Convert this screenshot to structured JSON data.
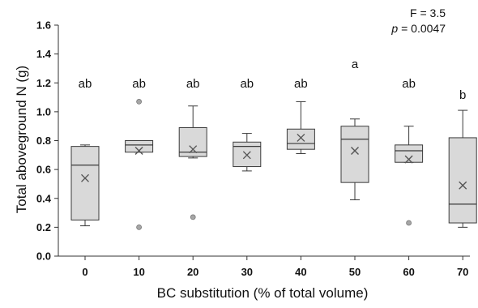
{
  "chart_data": {
    "type": "box",
    "xlabel": "BC substitution (% of total volume)",
    "ylabel": "Total aboveground N (g)",
    "ylim": [
      0.0,
      1.6
    ],
    "yticks": [
      "0.0",
      "0.2",
      "0.4",
      "0.6",
      "0.8",
      "1.0",
      "1.2",
      "1.4",
      "1.6"
    ],
    "grid": false,
    "categories": [
      "0",
      "10",
      "20",
      "30",
      "40",
      "50",
      "60",
      "70"
    ],
    "boxes": [
      {
        "category": "0",
        "whisker_low": 0.21,
        "q1": 0.25,
        "median": 0.63,
        "q3": 0.76,
        "whisker_high": 0.77,
        "mean": 0.54,
        "outliers": [],
        "letter": "ab"
      },
      {
        "category": "10",
        "whisker_low": 0.72,
        "q1": 0.72,
        "median": 0.77,
        "q3": 0.8,
        "whisker_high": 0.8,
        "mean": 0.73,
        "outliers": [
          1.07,
          0.2
        ],
        "letter": "ab"
      },
      {
        "category": "20",
        "whisker_low": 0.68,
        "q1": 0.69,
        "median": 0.72,
        "q3": 0.89,
        "whisker_high": 1.04,
        "mean": 0.74,
        "outliers": [
          0.27
        ],
        "letter": "ab"
      },
      {
        "category": "30",
        "whisker_low": 0.59,
        "q1": 0.62,
        "median": 0.76,
        "q3": 0.79,
        "whisker_high": 0.85,
        "mean": 0.7,
        "outliers": [],
        "letter": "ab"
      },
      {
        "category": "40",
        "whisker_low": 0.71,
        "q1": 0.74,
        "median": 0.78,
        "q3": 0.88,
        "whisker_high": 1.07,
        "mean": 0.82,
        "outliers": [],
        "letter": "ab"
      },
      {
        "category": "50",
        "whisker_low": 0.39,
        "q1": 0.51,
        "median": 0.81,
        "q3": 0.9,
        "whisker_high": 0.95,
        "mean": 0.73,
        "outliers": [],
        "letter": "a"
      },
      {
        "category": "60",
        "whisker_low": 0.65,
        "q1": 0.65,
        "median": 0.73,
        "q3": 0.77,
        "whisker_high": 0.9,
        "mean": 0.67,
        "outliers": [
          0.23
        ],
        "letter": "ab"
      },
      {
        "category": "70",
        "whisker_low": 0.2,
        "q1": 0.23,
        "median": 0.36,
        "q3": 0.82,
        "whisker_high": 1.01,
        "mean": 0.49,
        "outliers": [],
        "letter": "b"
      }
    ],
    "annotations": {
      "f_stat": "F = 3.5",
      "p_label": "p",
      "p_value": " = 0.0047"
    },
    "colors": {
      "box_fill": "#d9d9d9",
      "box_stroke": "#3a3a3a",
      "outlier_fill": "#a6a6a6",
      "mean_marker": "#555555",
      "axis": "#333333"
    }
  }
}
